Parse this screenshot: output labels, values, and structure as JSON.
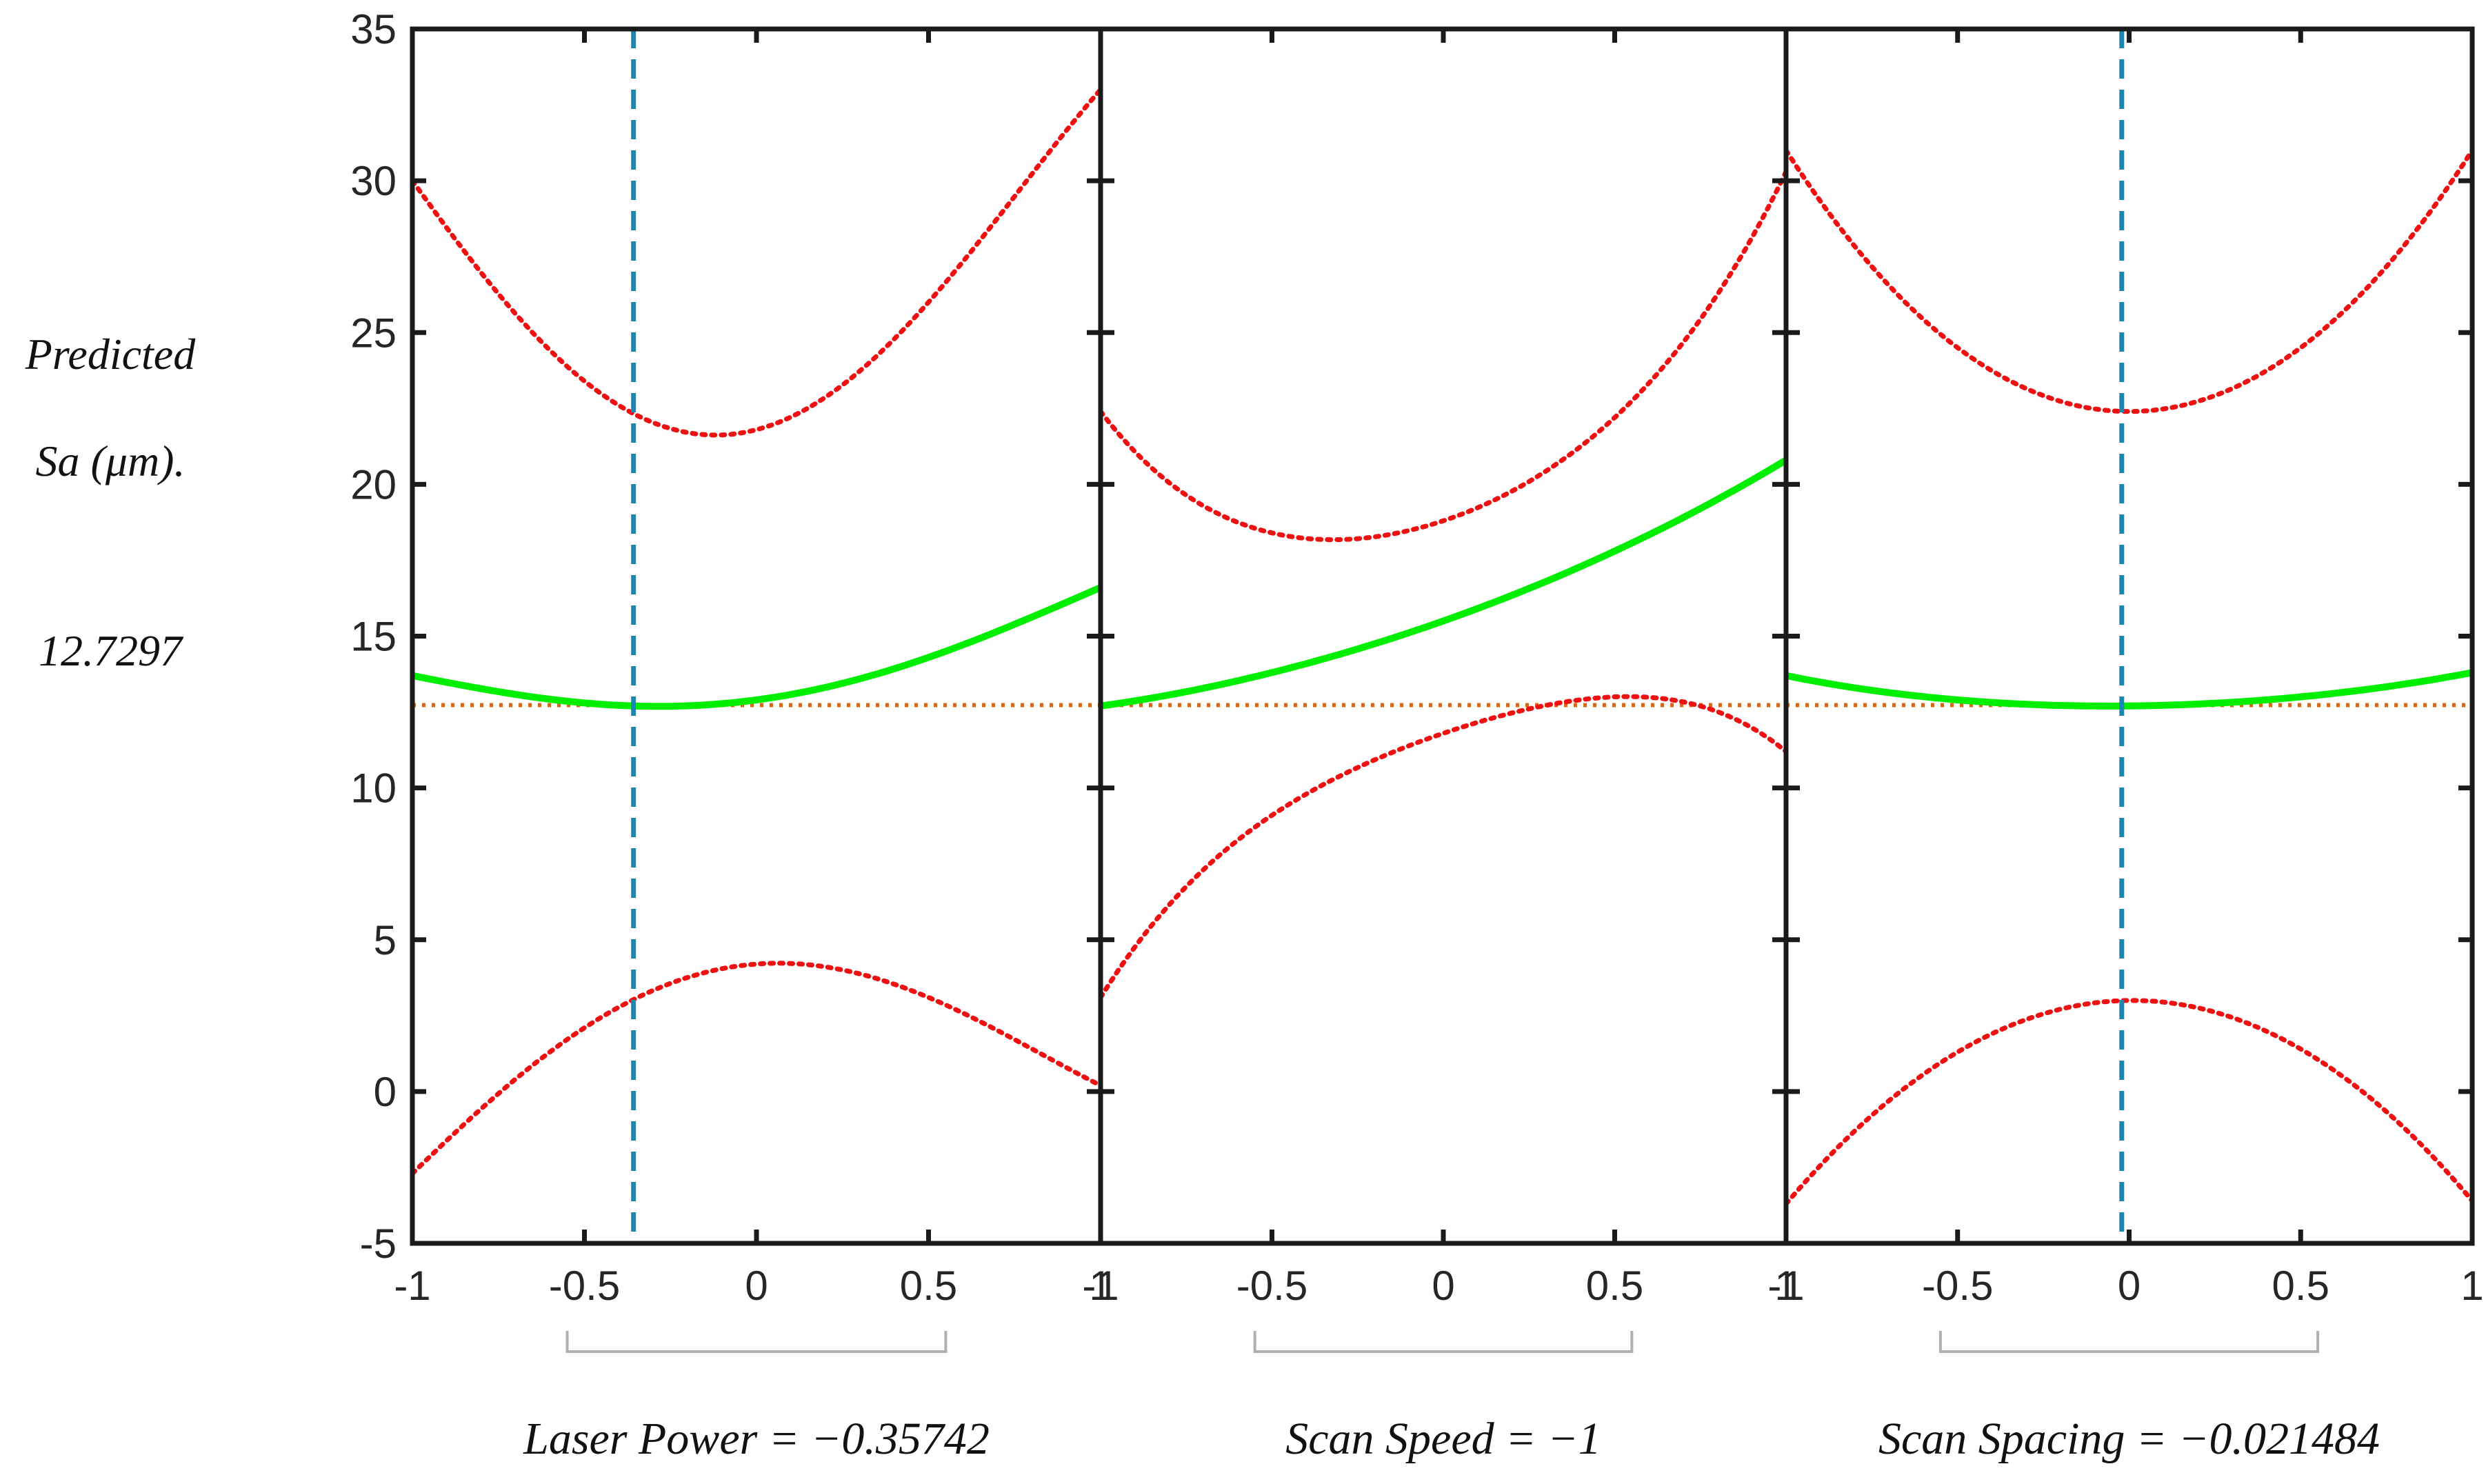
{
  "chart_data": {
    "type": "line",
    "title": "",
    "ylabel_lines": [
      "Predicted",
      "Sa (μm)."
    ],
    "predicted_value": "12.7297",
    "y_reference": 12.7297,
    "ylim": [
      -5,
      35
    ],
    "yticks": [
      -5,
      0,
      5,
      10,
      15,
      20,
      25,
      30,
      35
    ],
    "ytick_labels": [
      "-5",
      "0",
      "5",
      "10",
      "15",
      "20",
      "25",
      "30",
      "35"
    ],
    "xlim": [
      -1,
      1
    ],
    "xticks": [
      -1,
      -0.5,
      0,
      0.5,
      1
    ],
    "colors": {
      "prediction": "#00ee00",
      "bounds": "#ee1111",
      "reference": "#d2691e",
      "current": "#1a86b4",
      "axes": "#1a1a1a",
      "slider": "#b0b0b0"
    },
    "panels": [
      {
        "name": "laser-power",
        "variable": "Laser Power",
        "current_x": -0.35742,
        "xlabel": "Laser Power = −0.35742",
        "xtick_labels": [
          "-1",
          "-0.5",
          "0",
          "0.5",
          "1"
        ],
        "series": [
          {
            "name": "Predicted Sa",
            "x": [
              -1,
              -0.5,
              0,
              0.5,
              1
            ],
            "y": [
              13.7,
              12.8,
              12.9,
              14.3,
              16.6
            ]
          },
          {
            "name": "Upper bound",
            "x": [
              -1,
              -0.5,
              0,
              0.5,
              1
            ],
            "y": [
              30.0,
              23.4,
              21.8,
              26.0,
              33.0
            ]
          },
          {
            "name": "Lower bound",
            "x": [
              -1,
              -0.5,
              0,
              0.5,
              1
            ],
            "y": [
              -2.7,
              2.1,
              4.2,
              3.1,
              0.2
            ]
          }
        ]
      },
      {
        "name": "scan-speed",
        "variable": "Scan Speed",
        "current_x": -1,
        "xlabel": "Scan Speed = −1",
        "xtick_labels": [
          "-1",
          "-0.5",
          "0",
          "0.5",
          "1"
        ],
        "series": [
          {
            "name": "Predicted Sa",
            "x": [
              -1,
              -0.5,
              0,
              0.5,
              1
            ],
            "y": [
              12.7,
              13.8,
              15.5,
              17.8,
              20.8
            ]
          },
          {
            "name": "Upper bound",
            "x": [
              -1,
              -0.5,
              0,
              0.5,
              1
            ],
            "y": [
              22.4,
              18.4,
              18.8,
              22.2,
              30.3
            ]
          },
          {
            "name": "Lower bound",
            "x": [
              -1,
              -0.5,
              0,
              0.5,
              1
            ],
            "y": [
              3.1,
              9.1,
              11.8,
              13.0,
              11.2
            ]
          }
        ]
      },
      {
        "name": "scan-spacing",
        "variable": "Scan Spacing",
        "current_x": -0.021484,
        "xlabel": "Scan Spacing = −0.021484",
        "xtick_labels": [
          "-1",
          "-0.5",
          "0",
          "0.5",
          "1"
        ],
        "series": [
          {
            "name": "Predicted Sa",
            "x": [
              -1,
              -0.5,
              0,
              0.5,
              1
            ],
            "y": [
              13.7,
              12.9,
              12.7,
              13.0,
              13.8
            ]
          },
          {
            "name": "Upper bound",
            "x": [
              -1,
              -0.5,
              0,
              0.5,
              1
            ],
            "y": [
              31.0,
              24.5,
              22.4,
              24.5,
              31.0
            ]
          },
          {
            "name": "Lower bound",
            "x": [
              -1,
              -0.5,
              0,
              0.5,
              1
            ],
            "y": [
              -3.7,
              1.3,
              3.0,
              1.4,
              -3.6
            ]
          }
        ]
      }
    ]
  }
}
